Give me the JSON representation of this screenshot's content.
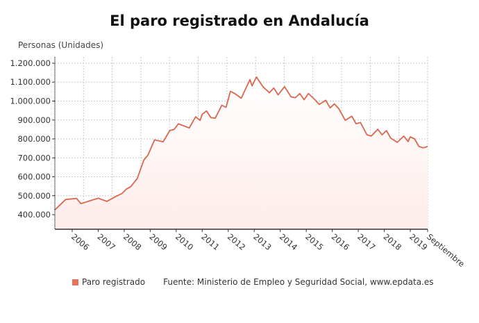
{
  "chart_data": {
    "type": "area",
    "title": "El paro registrado en Andalucía",
    "ylabel": "Personas (Unidades)",
    "xlabel": "",
    "ylim": [
      323000,
      1233000
    ],
    "yticks": [
      400000,
      500000,
      600000,
      700000,
      800000,
      900000,
      1000000,
      1100000,
      1200000
    ],
    "ytick_labels": [
      "400.000",
      "500.000",
      "600.000",
      "700.000",
      "800.000",
      "900.000",
      "1.000.000",
      "1.100.000",
      "1.200.000"
    ],
    "xticks": [
      "2006",
      "2007",
      "2008",
      "2009",
      "2010",
      "2011",
      "2012",
      "2013",
      "2014",
      "2015",
      "2016",
      "2017",
      "2018",
      "2019",
      "Septiembre"
    ],
    "grid": true,
    "legend_placement": "bottom",
    "color": "#d9664d",
    "fill_color": "#fdecea",
    "series": [
      {
        "name": "Paro registrado",
        "points": [
          [
            "2005-05",
            425000
          ],
          [
            "2005-10",
            480000
          ],
          [
            "2006-03",
            486000
          ],
          [
            "2006-05",
            458000
          ],
          [
            "2007-01",
            487000
          ],
          [
            "2007-05",
            470000
          ],
          [
            "2007-09",
            495000
          ],
          [
            "2007-12",
            512000
          ],
          [
            "2008-02",
            535000
          ],
          [
            "2008-04",
            548000
          ],
          [
            "2008-07",
            590000
          ],
          [
            "2008-10",
            687000
          ],
          [
            "2008-12",
            716000
          ],
          [
            "2009-03",
            795000
          ],
          [
            "2009-07",
            785000
          ],
          [
            "2009-10",
            844000
          ],
          [
            "2009-12",
            850000
          ],
          [
            "2010-02",
            880000
          ],
          [
            "2010-07",
            858000
          ],
          [
            "2010-10",
            917000
          ],
          [
            "2010-12",
            898000
          ],
          [
            "2011-01",
            930000
          ],
          [
            "2011-03",
            948000
          ],
          [
            "2011-05",
            913000
          ],
          [
            "2011-07",
            909000
          ],
          [
            "2011-10",
            978000
          ],
          [
            "2011-12",
            967000
          ],
          [
            "2012-02",
            1051000
          ],
          [
            "2012-04",
            1040000
          ],
          [
            "2012-07",
            1015000
          ],
          [
            "2012-11",
            1113000
          ],
          [
            "2012-12",
            1080000
          ],
          [
            "2013-02",
            1127000
          ],
          [
            "2013-05",
            1076000
          ],
          [
            "2013-08",
            1044000
          ],
          [
            "2013-10",
            1069000
          ],
          [
            "2013-12",
            1033000
          ],
          [
            "2014-03",
            1076000
          ],
          [
            "2014-06",
            1022000
          ],
          [
            "2014-08",
            1018000
          ],
          [
            "2014-10",
            1040000
          ],
          [
            "2014-12",
            1007000
          ],
          [
            "2015-02",
            1040000
          ],
          [
            "2015-05",
            1007000
          ],
          [
            "2015-07",
            982000
          ],
          [
            "2015-10",
            1004000
          ],
          [
            "2015-12",
            964000
          ],
          [
            "2016-02",
            985000
          ],
          [
            "2016-04",
            960000
          ],
          [
            "2016-07",
            898000
          ],
          [
            "2016-10",
            920000
          ],
          [
            "2016-12",
            880000
          ],
          [
            "2017-02",
            887000
          ],
          [
            "2017-05",
            822000
          ],
          [
            "2017-07",
            815000
          ],
          [
            "2017-10",
            851000
          ],
          [
            "2017-12",
            822000
          ],
          [
            "2018-02",
            844000
          ],
          [
            "2018-04",
            804000
          ],
          [
            "2018-07",
            782000
          ],
          [
            "2018-10",
            815000
          ],
          [
            "2018-12",
            786000
          ],
          [
            "2019-01",
            811000
          ],
          [
            "2019-03",
            800000
          ],
          [
            "2019-05",
            760000
          ],
          [
            "2019-07",
            753000
          ],
          [
            "2019-09",
            760000
          ]
        ]
      }
    ],
    "source": "Fuente: Ministerio de Empleo y Seguridad Social, www.epdata.es"
  }
}
